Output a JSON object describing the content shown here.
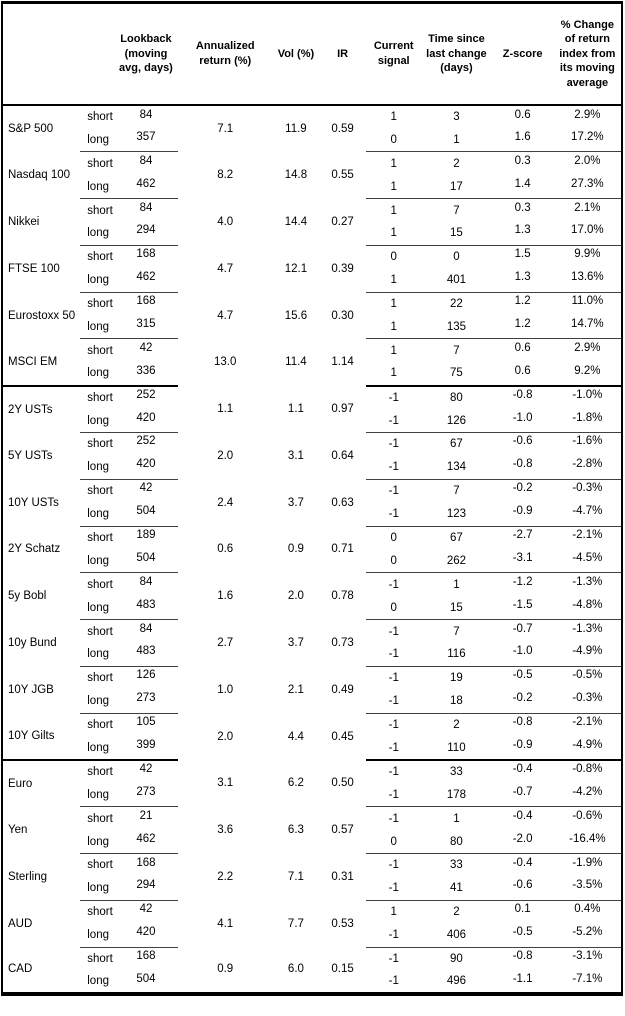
{
  "colors": {
    "border": "#000000",
    "text": "#000000",
    "background": "#ffffff"
  },
  "chart_data": {
    "type": "table",
    "horizon_labels": {
      "short": "short",
      "long": "long"
    },
    "columns": [
      {
        "id": "asset",
        "label": ""
      },
      {
        "id": "horizon",
        "label": ""
      },
      {
        "id": "lookback",
        "label": "Lookback (moving avg, days)"
      },
      {
        "id": "annualized_return",
        "label": "Annualized return (%)"
      },
      {
        "id": "vol",
        "label": "Vol (%)"
      },
      {
        "id": "ir",
        "label": "IR"
      },
      {
        "id": "current_signal",
        "label": "Current signal"
      },
      {
        "id": "time_since_last_change",
        "label": "Time since last change (days)"
      },
      {
        "id": "zscore",
        "label": "Z-score"
      },
      {
        "id": "pct_change",
        "label": "% Change of return index from its moving average"
      }
    ],
    "groups": [
      {
        "asset": "S&P 500",
        "section_end": false,
        "annualized_return": "7.1",
        "vol": "11.9",
        "ir": "0.59",
        "short": {
          "lookback": "84",
          "signal": "1",
          "days": "3",
          "zscore": "0.6",
          "pct_change": "2.9%"
        },
        "long": {
          "lookback": "357",
          "signal": "0",
          "days": "1",
          "zscore": "1.6",
          "pct_change": "17.2%"
        }
      },
      {
        "asset": "Nasdaq 100",
        "section_end": false,
        "annualized_return": "8.2",
        "vol": "14.8",
        "ir": "0.55",
        "short": {
          "lookback": "84",
          "signal": "1",
          "days": "2",
          "zscore": "0.3",
          "pct_change": "2.0%"
        },
        "long": {
          "lookback": "462",
          "signal": "1",
          "days": "17",
          "zscore": "1.4",
          "pct_change": "27.3%"
        }
      },
      {
        "asset": "Nikkei",
        "section_end": false,
        "annualized_return": "4.0",
        "vol": "14.4",
        "ir": "0.27",
        "short": {
          "lookback": "84",
          "signal": "1",
          "days": "7",
          "zscore": "0.3",
          "pct_change": "2.1%"
        },
        "long": {
          "lookback": "294",
          "signal": "1",
          "days": "15",
          "zscore": "1.3",
          "pct_change": "17.0%"
        }
      },
      {
        "asset": "FTSE 100",
        "section_end": false,
        "annualized_return": "4.7",
        "vol": "12.1",
        "ir": "0.39",
        "short": {
          "lookback": "168",
          "signal": "0",
          "days": "0",
          "zscore": "1.5",
          "pct_change": "9.9%"
        },
        "long": {
          "lookback": "462",
          "signal": "1",
          "days": "401",
          "zscore": "1.3",
          "pct_change": "13.6%"
        }
      },
      {
        "asset": "Eurostoxx 50",
        "section_end": false,
        "annualized_return": "4.7",
        "vol": "15.6",
        "ir": "0.30",
        "short": {
          "lookback": "168",
          "signal": "1",
          "days": "22",
          "zscore": "1.2",
          "pct_change": "11.0%"
        },
        "long": {
          "lookback": "315",
          "signal": "1",
          "days": "135",
          "zscore": "1.2",
          "pct_change": "14.7%"
        }
      },
      {
        "asset": "MSCI EM",
        "section_end": true,
        "annualized_return": "13.0",
        "vol": "11.4",
        "ir": "1.14",
        "short": {
          "lookback": "42",
          "signal": "1",
          "days": "7",
          "zscore": "0.6",
          "pct_change": "2.9%"
        },
        "long": {
          "lookback": "336",
          "signal": "1",
          "days": "75",
          "zscore": "0.6",
          "pct_change": "9.2%"
        }
      },
      {
        "asset": "2Y USTs",
        "section_end": false,
        "annualized_return": "1.1",
        "vol": "1.1",
        "ir": "0.97",
        "short": {
          "lookback": "252",
          "signal": "-1",
          "days": "80",
          "zscore": "-0.8",
          "pct_change": "-1.0%"
        },
        "long": {
          "lookback": "420",
          "signal": "-1",
          "days": "126",
          "zscore": "-1.0",
          "pct_change": "-1.8%"
        }
      },
      {
        "asset": "5Y USTs",
        "section_end": false,
        "annualized_return": "2.0",
        "vol": "3.1",
        "ir": "0.64",
        "short": {
          "lookback": "252",
          "signal": "-1",
          "days": "67",
          "zscore": "-0.6",
          "pct_change": "-1.6%"
        },
        "long": {
          "lookback": "420",
          "signal": "-1",
          "days": "134",
          "zscore": "-0.8",
          "pct_change": "-2.8%"
        }
      },
      {
        "asset": "10Y USTs",
        "section_end": false,
        "annualized_return": "2.4",
        "vol": "3.7",
        "ir": "0.63",
        "short": {
          "lookback": "42",
          "signal": "-1",
          "days": "7",
          "zscore": "-0.2",
          "pct_change": "-0.3%"
        },
        "long": {
          "lookback": "504",
          "signal": "-1",
          "days": "123",
          "zscore": "-0.9",
          "pct_change": "-4.7%"
        }
      },
      {
        "asset": "2Y Schatz",
        "section_end": false,
        "annualized_return": "0.6",
        "vol": "0.9",
        "ir": "0.71",
        "short": {
          "lookback": "189",
          "signal": "0",
          "days": "67",
          "zscore": "-2.7",
          "pct_change": "-2.1%"
        },
        "long": {
          "lookback": "504",
          "signal": "0",
          "days": "262",
          "zscore": "-3.1",
          "pct_change": "-4.5%"
        }
      },
      {
        "asset": "5y Bobl",
        "section_end": false,
        "annualized_return": "1.6",
        "vol": "2.0",
        "ir": "0.78",
        "short": {
          "lookback": "84",
          "signal": "-1",
          "days": "1",
          "zscore": "-1.2",
          "pct_change": "-1.3%"
        },
        "long": {
          "lookback": "483",
          "signal": "0",
          "days": "15",
          "zscore": "-1.5",
          "pct_change": "-4.8%"
        }
      },
      {
        "asset": "10y Bund",
        "section_end": false,
        "annualized_return": "2.7",
        "vol": "3.7",
        "ir": "0.73",
        "short": {
          "lookback": "84",
          "signal": "-1",
          "days": "7",
          "zscore": "-0.7",
          "pct_change": "-1.3%"
        },
        "long": {
          "lookback": "483",
          "signal": "-1",
          "days": "116",
          "zscore": "-1.0",
          "pct_change": "-4.9%"
        }
      },
      {
        "asset": "10Y JGB",
        "section_end": false,
        "annualized_return": "1.0",
        "vol": "2.1",
        "ir": "0.49",
        "short": {
          "lookback": "126",
          "signal": "-1",
          "days": "19",
          "zscore": "-0.5",
          "pct_change": "-0.5%"
        },
        "long": {
          "lookback": "273",
          "signal": "-1",
          "days": "18",
          "zscore": "-0.2",
          "pct_change": "-0.3%"
        }
      },
      {
        "asset": "10Y Gilts",
        "section_end": true,
        "annualized_return": "2.0",
        "vol": "4.4",
        "ir": "0.45",
        "short": {
          "lookback": "105",
          "signal": "-1",
          "days": "2",
          "zscore": "-0.8",
          "pct_change": "-2.1%"
        },
        "long": {
          "lookback": "399",
          "signal": "-1",
          "days": "110",
          "zscore": "-0.9",
          "pct_change": "-4.9%"
        }
      },
      {
        "asset": "Euro",
        "section_end": false,
        "annualized_return": "3.1",
        "vol": "6.2",
        "ir": "0.50",
        "short": {
          "lookback": "42",
          "signal": "-1",
          "days": "33",
          "zscore": "-0.4",
          "pct_change": "-0.8%"
        },
        "long": {
          "lookback": "273",
          "signal": "-1",
          "days": "178",
          "zscore": "-0.7",
          "pct_change": "-4.2%"
        }
      },
      {
        "asset": "Yen",
        "section_end": false,
        "annualized_return": "3.6",
        "vol": "6.3",
        "ir": "0.57",
        "short": {
          "lookback": "21",
          "signal": "-1",
          "days": "1",
          "zscore": "-0.4",
          "pct_change": "-0.6%"
        },
        "long": {
          "lookback": "462",
          "signal": "0",
          "days": "80",
          "zscore": "-2.0",
          "pct_change": "-16.4%"
        }
      },
      {
        "asset": "Sterling",
        "section_end": false,
        "annualized_return": "2.2",
        "vol": "7.1",
        "ir": "0.31",
        "short": {
          "lookback": "168",
          "signal": "-1",
          "days": "33",
          "zscore": "-0.4",
          "pct_change": "-1.9%"
        },
        "long": {
          "lookback": "294",
          "signal": "-1",
          "days": "41",
          "zscore": "-0.6",
          "pct_change": "-3.5%"
        }
      },
      {
        "asset": "AUD",
        "section_end": false,
        "annualized_return": "4.1",
        "vol": "7.7",
        "ir": "0.53",
        "short": {
          "lookback": "42",
          "signal": "1",
          "days": "2",
          "zscore": "0.1",
          "pct_change": "0.4%"
        },
        "long": {
          "lookback": "420",
          "signal": "-1",
          "days": "406",
          "zscore": "-0.5",
          "pct_change": "-5.2%"
        }
      },
      {
        "asset": "CAD",
        "section_end": false,
        "annualized_return": "0.9",
        "vol": "6.0",
        "ir": "0.15",
        "short": {
          "lookback": "168",
          "signal": "-1",
          "days": "90",
          "zscore": "-0.8",
          "pct_change": "-3.1%"
        },
        "long": {
          "lookback": "504",
          "signal": "-1",
          "days": "496",
          "zscore": "-1.1",
          "pct_change": "-7.1%"
        }
      }
    ]
  }
}
